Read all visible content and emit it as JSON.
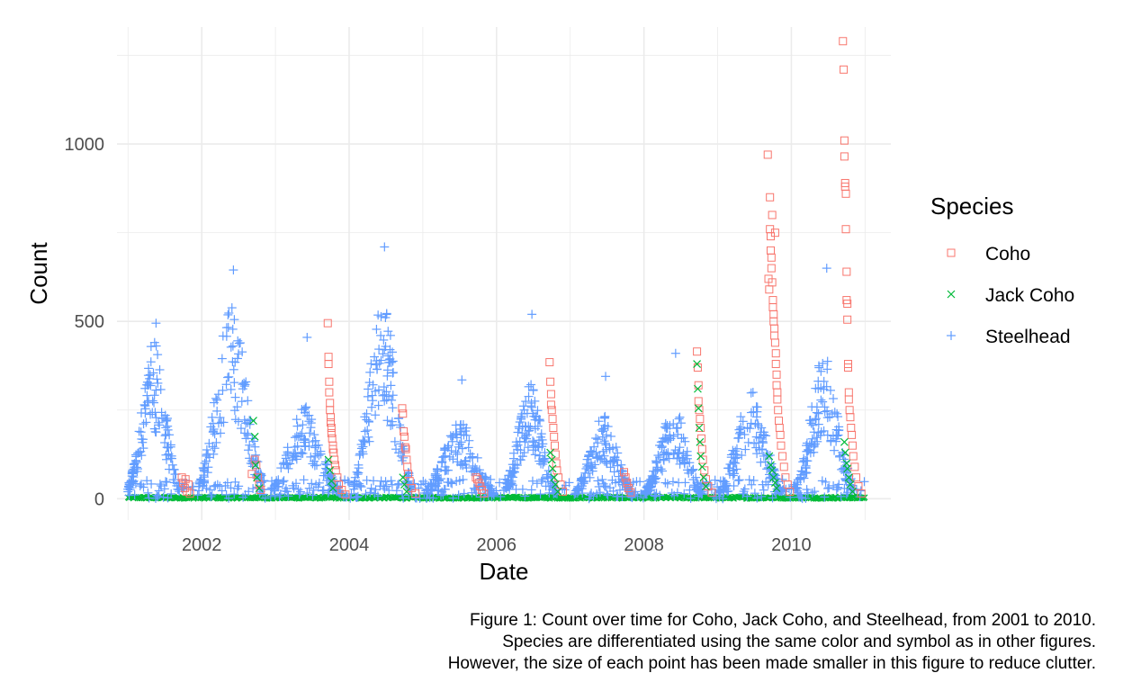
{
  "chart_data": {
    "type": "scatter",
    "xlabel": "Date",
    "ylabel": "Count",
    "x_ticks": [
      "2002",
      "2004",
      "2006",
      "2008",
      "2010"
    ],
    "y_ticks": [
      "0",
      "500",
      "1000"
    ],
    "xlim": [
      2000.85,
      2011.35
    ],
    "ylim": [
      -60,
      1330
    ],
    "grid": true,
    "legend_position": "right",
    "legend_title": "Species",
    "series": [
      {
        "name": "Coho",
        "marker": "square-open",
        "color": "#F8766D",
        "points": [
          [
            2001.73,
            60
          ],
          [
            2001.75,
            45
          ],
          [
            2001.77,
            30
          ],
          [
            2001.78,
            55
          ],
          [
            2001.8,
            20
          ],
          [
            2001.82,
            40
          ],
          [
            2001.84,
            15
          ],
          [
            2002.68,
            70
          ],
          [
            2002.72,
            110
          ],
          [
            2002.74,
            95
          ],
          [
            2002.76,
            60
          ],
          [
            2002.78,
            40
          ],
          [
            2002.8,
            25
          ],
          [
            2003.71,
            495
          ],
          [
            2003.72,
            400
          ],
          [
            2003.72,
            380
          ],
          [
            2003.73,
            330
          ],
          [
            2003.73,
            300
          ],
          [
            2003.74,
            270
          ],
          [
            2003.74,
            250
          ],
          [
            2003.75,
            230
          ],
          [
            2003.75,
            215
          ],
          [
            2003.76,
            200
          ],
          [
            2003.76,
            185
          ],
          [
            2003.77,
            170
          ],
          [
            2003.78,
            150
          ],
          [
            2003.78,
            140
          ],
          [
            2003.79,
            130
          ],
          [
            2003.8,
            110
          ],
          [
            2003.81,
            95
          ],
          [
            2003.82,
            80
          ],
          [
            2003.84,
            60
          ],
          [
            2003.86,
            40
          ],
          [
            2003.9,
            25
          ],
          [
            2003.95,
            12
          ],
          [
            2004.72,
            255
          ],
          [
            2004.73,
            240
          ],
          [
            2004.74,
            190
          ],
          [
            2004.75,
            175
          ],
          [
            2004.76,
            145
          ],
          [
            2004.77,
            140
          ],
          [
            2004.78,
            110
          ],
          [
            2004.79,
            90
          ],
          [
            2004.8,
            70
          ],
          [
            2004.82,
            50
          ],
          [
            2004.85,
            30
          ],
          [
            2004.9,
            15
          ],
          [
            2005.72,
            60
          ],
          [
            2005.74,
            55
          ],
          [
            2005.76,
            45
          ],
          [
            2005.78,
            35
          ],
          [
            2005.8,
            25
          ],
          [
            2005.83,
            15
          ],
          [
            2006.72,
            385
          ],
          [
            2006.73,
            330
          ],
          [
            2006.74,
            295
          ],
          [
            2006.74,
            265
          ],
          [
            2006.75,
            250
          ],
          [
            2006.76,
            225
          ],
          [
            2006.77,
            200
          ],
          [
            2006.78,
            175
          ],
          [
            2006.79,
            150
          ],
          [
            2006.8,
            125
          ],
          [
            2006.81,
            100
          ],
          [
            2006.82,
            80
          ],
          [
            2006.84,
            60
          ],
          [
            2006.87,
            40
          ],
          [
            2006.9,
            20
          ],
          [
            2007.73,
            75
          ],
          [
            2007.75,
            60
          ],
          [
            2007.77,
            45
          ],
          [
            2007.79,
            30
          ],
          [
            2007.82,
            18
          ],
          [
            2008.72,
            415
          ],
          [
            2008.73,
            370
          ],
          [
            2008.74,
            320
          ],
          [
            2008.74,
            275
          ],
          [
            2008.75,
            250
          ],
          [
            2008.76,
            225
          ],
          [
            2008.77,
            200
          ],
          [
            2008.78,
            170
          ],
          [
            2008.79,
            140
          ],
          [
            2008.8,
            110
          ],
          [
            2008.82,
            80
          ],
          [
            2008.84,
            55
          ],
          [
            2008.87,
            35
          ],
          [
            2008.92,
            18
          ],
          [
            2009.68,
            970
          ],
          [
            2009.69,
            620
          ],
          [
            2009.7,
            590
          ],
          [
            2009.71,
            850
          ],
          [
            2009.71,
            760
          ],
          [
            2009.72,
            740
          ],
          [
            2009.72,
            700
          ],
          [
            2009.73,
            680
          ],
          [
            2009.73,
            650
          ],
          [
            2009.74,
            800
          ],
          [
            2009.74,
            610
          ],
          [
            2009.75,
            560
          ],
          [
            2009.75,
            540
          ],
          [
            2009.76,
            520
          ],
          [
            2009.76,
            500
          ],
          [
            2009.77,
            480
          ],
          [
            2009.77,
            460
          ],
          [
            2009.78,
            750
          ],
          [
            2009.78,
            440
          ],
          [
            2009.79,
            410
          ],
          [
            2009.79,
            380
          ],
          [
            2009.8,
            350
          ],
          [
            2009.8,
            320
          ],
          [
            2009.81,
            300
          ],
          [
            2009.81,
            280
          ],
          [
            2009.82,
            250
          ],
          [
            2009.83,
            220
          ],
          [
            2009.84,
            200
          ],
          [
            2009.85,
            180
          ],
          [
            2009.86,
            150
          ],
          [
            2009.88,
            120
          ],
          [
            2009.9,
            90
          ],
          [
            2009.92,
            60
          ],
          [
            2009.95,
            40
          ],
          [
            2009.98,
            20
          ],
          [
            2010.7,
            1290
          ],
          [
            2010.71,
            1210
          ],
          [
            2010.72,
            1010
          ],
          [
            2010.72,
            965
          ],
          [
            2010.73,
            890
          ],
          [
            2010.73,
            880
          ],
          [
            2010.74,
            860
          ],
          [
            2010.74,
            760
          ],
          [
            2010.75,
            640
          ],
          [
            2010.75,
            560
          ],
          [
            2010.76,
            550
          ],
          [
            2010.76,
            505
          ],
          [
            2010.77,
            380
          ],
          [
            2010.77,
            370
          ],
          [
            2010.78,
            300
          ],
          [
            2010.78,
            280
          ],
          [
            2010.79,
            250
          ],
          [
            2010.8,
            230
          ],
          [
            2010.81,
            200
          ],
          [
            2010.82,
            180
          ],
          [
            2010.83,
            150
          ],
          [
            2010.84,
            120
          ],
          [
            2010.86,
            90
          ],
          [
            2010.88,
            60
          ],
          [
            2010.91,
            35
          ],
          [
            2010.95,
            15
          ]
        ]
      },
      {
        "name": "Jack Coho",
        "marker": "x",
        "color": "#00BA38",
        "points": [
          [
            2002.7,
            220
          ],
          [
            2002.72,
            175
          ],
          [
            2002.73,
            95
          ],
          [
            2002.75,
            60
          ],
          [
            2002.78,
            30
          ],
          [
            2003.72,
            110
          ],
          [
            2003.74,
            80
          ],
          [
            2003.76,
            50
          ],
          [
            2003.78,
            30
          ],
          [
            2004.73,
            60
          ],
          [
            2004.75,
            40
          ],
          [
            2004.78,
            20
          ],
          [
            2006.73,
            130
          ],
          [
            2006.75,
            110
          ],
          [
            2006.76,
            85
          ],
          [
            2006.78,
            60
          ],
          [
            2006.8,
            40
          ],
          [
            2006.83,
            20
          ],
          [
            2008.72,
            380
          ],
          [
            2008.73,
            310
          ],
          [
            2008.74,
            255
          ],
          [
            2008.75,
            200
          ],
          [
            2008.76,
            160
          ],
          [
            2008.77,
            120
          ],
          [
            2008.79,
            90
          ],
          [
            2008.81,
            60
          ],
          [
            2008.84,
            35
          ],
          [
            2009.7,
            120
          ],
          [
            2009.72,
            95
          ],
          [
            2009.74,
            80
          ],
          [
            2009.76,
            60
          ],
          [
            2009.78,
            45
          ],
          [
            2009.8,
            30
          ],
          [
            2010.72,
            160
          ],
          [
            2010.73,
            130
          ],
          [
            2010.75,
            100
          ],
          [
            2010.76,
            85
          ],
          [
            2010.78,
            60
          ],
          [
            2010.8,
            40
          ],
          [
            2010.83,
            20
          ]
        ]
      },
      {
        "name": "Steelhead",
        "marker": "plus",
        "color": "#619CFF",
        "peaks": [
          {
            "center": 2001.35,
            "amplitude": 340,
            "width": 0.16,
            "max": 495
          },
          {
            "center": 2002.4,
            "amplitude": 420,
            "width": 0.2,
            "max": 645
          },
          {
            "center": 2003.4,
            "amplitude": 200,
            "width": 0.22,
            "max": 455
          },
          {
            "center": 2004.45,
            "amplitude": 430,
            "width": 0.18,
            "max": 710
          },
          {
            "center": 2005.5,
            "amplitude": 170,
            "width": 0.22,
            "max": 335
          },
          {
            "center": 2006.45,
            "amplitude": 250,
            "width": 0.16,
            "max": 520
          },
          {
            "center": 2007.45,
            "amplitude": 180,
            "width": 0.18,
            "max": 345
          },
          {
            "center": 2008.4,
            "amplitude": 200,
            "width": 0.18,
            "max": 410
          },
          {
            "center": 2009.45,
            "amplitude": 230,
            "width": 0.2,
            "max": 300
          },
          {
            "center": 2010.45,
            "amplitude": 320,
            "width": 0.18,
            "max": 650
          }
        ],
        "baseline_points": "continuous 0–60 throughout 2001–2011"
      }
    ]
  },
  "caption": {
    "line1": "Figure 1: Count over time for Coho, Jack Coho, and Steelhead, from 2001 to 2010.",
    "line2": "Species are differentiated using the same color and symbol as in other figures.",
    "line3": "However, the size of each point has been made smaller in this figure to reduce clutter."
  }
}
